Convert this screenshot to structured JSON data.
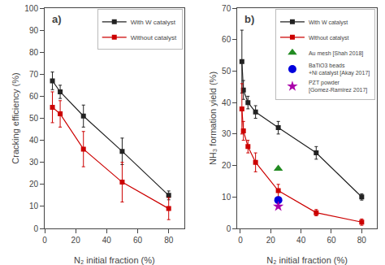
{
  "chart_data": [
    {
      "type": "line",
      "xlabel": "N₂ initial fraction (%)",
      "ylabel": "Cracking efficiency (%)",
      "annotations": [
        "a)"
      ],
      "xlim": [
        0,
        90
      ],
      "xticks": [
        0,
        20,
        40,
        60,
        80
      ],
      "ylim": [
        0,
        100
      ],
      "yticks": [
        0,
        10,
        20,
        30,
        40,
        50,
        60,
        70,
        80,
        90,
        100
      ],
      "grid": false,
      "legend": "upper right",
      "series": [
        {
          "name": "With W catalyst",
          "type": "line",
          "marker": "square",
          "color": "#222222",
          "x": [
            5,
            10,
            25,
            50,
            80
          ],
          "values": [
            67,
            62,
            51,
            35,
            15
          ],
          "yerr": [
            4,
            3,
            5,
            6,
            2
          ]
        },
        {
          "name": "Without catalyst",
          "type": "line",
          "marker": "square",
          "color": "#cc0000",
          "x": [
            5,
            10,
            25,
            50,
            80
          ],
          "values": [
            55,
            52,
            36,
            21,
            9
          ],
          "yerr": [
            7,
            6,
            8,
            9,
            5
          ]
        }
      ]
    },
    {
      "type": "line",
      "xlabel": "N₂ initial fraction (%)",
      "ylabel": "NH₃ formation yield (%)",
      "annotations": [
        "b)"
      ],
      "xlim": [
        -2,
        90
      ],
      "xticks": [
        0,
        20,
        40,
        60,
        80
      ],
      "ylim": [
        0,
        70
      ],
      "yticks": [
        0,
        10,
        20,
        30,
        40,
        50,
        60,
        70
      ],
      "grid": false,
      "legend": "upper right",
      "series": [
        {
          "name": "With W catalyst",
          "type": "line",
          "marker": "square",
          "color": "#222222",
          "x": [
            1,
            2,
            5,
            10,
            25,
            50,
            80
          ],
          "values": [
            53,
            44,
            40,
            37,
            32,
            24,
            10
          ],
          "yerr": [
            10,
            3,
            2,
            2,
            2,
            2,
            1
          ]
        },
        {
          "name": "Without catalyst",
          "type": "line",
          "marker": "square",
          "color": "#cc0000",
          "x": [
            1,
            2,
            5,
            10,
            25,
            50,
            80
          ],
          "values": [
            38,
            31,
            26,
            21,
            12,
            5,
            2
          ],
          "yerr": [
            8,
            3,
            2,
            3,
            2,
            1,
            1
          ]
        },
        {
          "name": "Au mesh [Shah 2018]",
          "type": "scatter",
          "marker": "triangle-up",
          "color": "#228B22",
          "x": [
            25
          ],
          "values": [
            19
          ]
        },
        {
          "name": "BaTiO3 beads\n+Ni catalyst [Akay 2017]",
          "type": "scatter",
          "marker": "circle",
          "color": "#0000dd",
          "x": [
            25
          ],
          "values": [
            9
          ]
        },
        {
          "name": "PZT powder\n[Gomez-Ramirez 2017]",
          "type": "scatter",
          "marker": "star",
          "color": "#aa00aa",
          "x": [
            25
          ],
          "values": [
            7
          ]
        }
      ]
    }
  ]
}
